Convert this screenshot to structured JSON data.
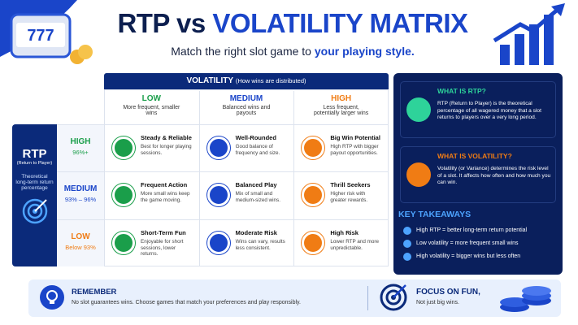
{
  "header": {
    "title_main": "RTP vs",
    "title_accent": "VOLATILITY MATRIX",
    "subtitle_plain": "Match the right slot game to",
    "subtitle_accent": "your playing style."
  },
  "matrix": {
    "volatility_title": "VOLATILITY",
    "volatility_note": "(How wins are distributed)",
    "columns": [
      {
        "label": "LOW",
        "desc": "More frequent, smaller wins"
      },
      {
        "label": "MEDIUM",
        "desc": "Balanced wins and payouts"
      },
      {
        "label": "HIGH",
        "desc": "Less frequent, potentially larger wins"
      }
    ],
    "rtp_title": "RTP",
    "rtp_note": "(Return to Player)",
    "rtp_desc": "Theoretical long-term return percentage",
    "rows": [
      {
        "label": "HIGH",
        "range": "96%+",
        "cells": [
          {
            "title": "Steady & Reliable",
            "text": "Best for longer playing sessions."
          },
          {
            "title": "Well-Rounded",
            "text": "Good balance of frequency and size."
          },
          {
            "title": "Big Win Potential",
            "text": "High RTP with bigger payout opportunities."
          }
        ]
      },
      {
        "label": "MEDIUM",
        "range": "93% – 96%",
        "cells": [
          {
            "title": "Frequent Action",
            "text": "More small wins keep the game moving."
          },
          {
            "title": "Balanced Play",
            "text": "Mix of small and medium-sized wins."
          },
          {
            "title": "Thrill Seekers",
            "text": "Higher risk with greater rewards."
          }
        ]
      },
      {
        "label": "LOW",
        "range": "Below 93%",
        "cells": [
          {
            "title": "Short-Term Fun",
            "text": "Enjoyable for short sessions, lower returns."
          },
          {
            "title": "Moderate Risk",
            "text": "Wins can vary, results less consistent."
          },
          {
            "title": "High Risk",
            "text": "Lower RTP and more unpredictable."
          }
        ]
      }
    ]
  },
  "sidebar": {
    "sections": [
      {
        "title": "WHAT IS RTP?",
        "text": "RTP (Return to Player) is the theoretical percentage of all wagered money that a slot returns to players over a very long period."
      },
      {
        "title": "WHAT IS VOLATILITY?",
        "text": "Volatility (or Variance) determines the risk level of a slot. It affects how often and how much you can win."
      }
    ],
    "takeaways_title": "KEY TAKEAWAYS",
    "takeaways": [
      "High RTP = better long-term return potential",
      "Low volatility = more frequent small wins",
      "High volatility = bigger wins but less often"
    ]
  },
  "footer": {
    "remember_title": "REMEMBER",
    "remember_text": "No slot guarantees wins. Choose games that match your preferences and play responsibly.",
    "focus_title": "FOCUS ON FUN,",
    "focus_text": "Not just big wins."
  }
}
